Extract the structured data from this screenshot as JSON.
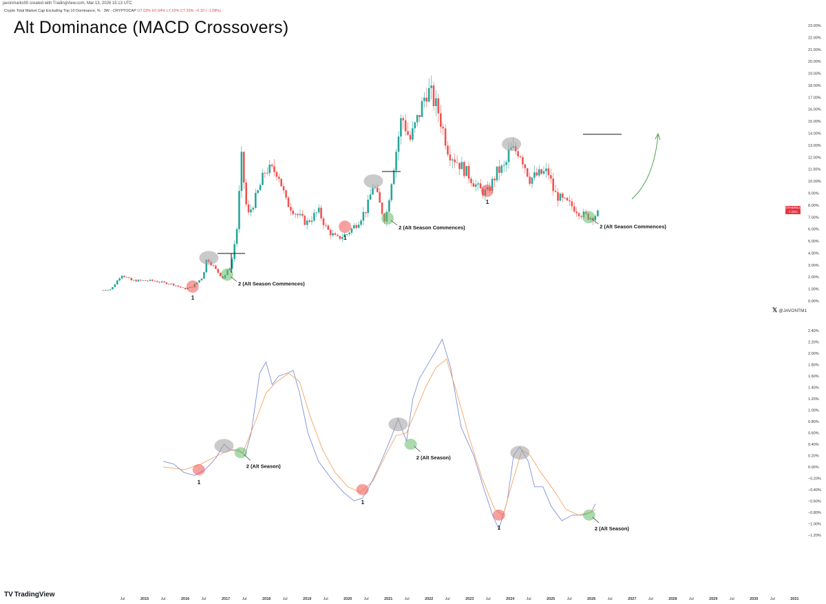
{
  "header": {
    "meta": "javonmarks00 created with TradingView.com, Mar 13, 2026 15:13 UTC",
    "symbol_prefix": "Crypto Total Market Cap Excluding Top 10 Dominance, % · 3W · CRYPTOCAP",
    "ohlc": "O7.63% H7.64% L7.22% C7.33% −0.10 (−1.08%)"
  },
  "title": "Alt Dominance (MACD Crossovers)",
  "price_tag": {
    "symbol": "OTHERS.D",
    "value": "7.33%",
    "sub": "8d 6h"
  },
  "x_handle": "@JAVONTM1",
  "footer": {
    "logo_text": "TradingView"
  },
  "colors": {
    "up": "#26a69a",
    "down": "#ef5350",
    "macd_line": "#7b8fd6",
    "signal_line": "#f4a261",
    "red_marker": "#ef5350",
    "green_marker": "#66bb6a",
    "gray_marker": "#9e9e9e",
    "arrow": "#43a047"
  },
  "chart_data": [
    {
      "type": "candlestick",
      "xlabel": "",
      "ylabel": "",
      "ylim": [
        0,
        23
      ],
      "y_ticks": [
        "0.00%",
        "1.00%",
        "2.00%",
        "3.00%",
        "4.00%",
        "5.00%",
        "6.00%",
        "7.00%",
        "8.00%",
        "9.00%",
        "10.00%",
        "11.00%",
        "12.00%",
        "13.00%",
        "14.00%",
        "15.00%",
        "16.00%",
        "17.00%",
        "18.00%",
        "19.00%",
        "20.00%",
        "21.00%",
        "22.00%",
        "23.00%"
      ],
      "x_ticks": [
        {
          "label": "Jul",
          "t": 2014.5
        },
        {
          "label": "2015",
          "t": 2015
        },
        {
          "label": "Jul",
          "t": 2015.5
        },
        {
          "label": "2016",
          "t": 2016
        },
        {
          "label": "Jul",
          "t": 2016.5
        },
        {
          "label": "2017",
          "t": 2017
        },
        {
          "label": "Jul",
          "t": 2017.5
        },
        {
          "label": "2018",
          "t": 2018
        },
        {
          "label": "Jul",
          "t": 2018.5
        },
        {
          "label": "2019",
          "t": 2019
        },
        {
          "label": "Jul",
          "t": 2019.5
        },
        {
          "label": "2020",
          "t": 2020
        },
        {
          "label": "Jul",
          "t": 2020.5
        },
        {
          "label": "2021",
          "t": 2021
        },
        {
          "label": "Jul",
          "t": 2021.5
        },
        {
          "label": "2022",
          "t": 2022
        },
        {
          "label": "Jul",
          "t": 2022.5
        },
        {
          "label": "2023",
          "t": 2023
        },
        {
          "label": "Jul",
          "t": 2023.5
        },
        {
          "label": "2024",
          "t": 2024
        },
        {
          "label": "Jul",
          "t": 2024.5
        },
        {
          "label": "2025",
          "t": 2025
        },
        {
          "label": "Jul",
          "t": 2025.5
        },
        {
          "label": "2026",
          "t": 2026
        },
        {
          "label": "Jul",
          "t": 2026.5
        },
        {
          "label": "2027",
          "t": 2027
        },
        {
          "label": "Jul",
          "t": 2027.5
        },
        {
          "label": "2028",
          "t": 2028
        },
        {
          "label": "Jul",
          "t": 2028.5
        },
        {
          "label": "2029",
          "t": 2029
        },
        {
          "label": "Jul",
          "t": 2029.5
        },
        {
          "label": "2030",
          "t": 2030
        },
        {
          "label": "Jul",
          "t": 2030.5
        },
        {
          "label": "2031",
          "t": 2031
        }
      ],
      "series_trend": [
        {
          "t": 2014.0,
          "v": 0.9
        },
        {
          "t": 2014.2,
          "v": 1.0
        },
        {
          "t": 2014.45,
          "v": 2.2
        },
        {
          "t": 2014.7,
          "v": 1.7
        },
        {
          "t": 2015.2,
          "v": 1.7
        },
        {
          "t": 2015.7,
          "v": 1.4
        },
        {
          "t": 2016.0,
          "v": 1.0
        },
        {
          "t": 2016.2,
          "v": 1.2
        },
        {
          "t": 2016.45,
          "v": 2.0
        },
        {
          "t": 2016.55,
          "v": 3.6
        },
        {
          "t": 2016.75,
          "v": 2.7
        },
        {
          "t": 2016.95,
          "v": 1.9
        },
        {
          "t": 2017.15,
          "v": 3.0
        },
        {
          "t": 2017.3,
          "v": 6.3
        },
        {
          "t": 2017.4,
          "v": 12.0
        },
        {
          "t": 2017.55,
          "v": 7.0
        },
        {
          "t": 2017.8,
          "v": 9.0
        },
        {
          "t": 2018.0,
          "v": 11.0
        },
        {
          "t": 2018.3,
          "v": 10.8
        },
        {
          "t": 2018.5,
          "v": 8.3
        },
        {
          "t": 2018.75,
          "v": 7.3
        },
        {
          "t": 2019.0,
          "v": 6.5
        },
        {
          "t": 2019.3,
          "v": 7.5
        },
        {
          "t": 2019.5,
          "v": 6.0
        },
        {
          "t": 2019.75,
          "v": 5.2
        },
        {
          "t": 2020.0,
          "v": 5.6
        },
        {
          "t": 2020.25,
          "v": 6.5
        },
        {
          "t": 2020.5,
          "v": 7.8
        },
        {
          "t": 2020.65,
          "v": 9.8
        },
        {
          "t": 2020.85,
          "v": 7.6
        },
        {
          "t": 2020.95,
          "v": 6.7
        },
        {
          "t": 2021.1,
          "v": 10.2
        },
        {
          "t": 2021.35,
          "v": 15.5
        },
        {
          "t": 2021.55,
          "v": 13.4
        },
        {
          "t": 2021.8,
          "v": 15.8
        },
        {
          "t": 2021.95,
          "v": 17.5
        },
        {
          "t": 2022.05,
          "v": 17.4
        },
        {
          "t": 2022.25,
          "v": 15.8
        },
        {
          "t": 2022.5,
          "v": 12.5
        },
        {
          "t": 2022.75,
          "v": 11.5
        },
        {
          "t": 2023.0,
          "v": 10.5
        },
        {
          "t": 2023.25,
          "v": 9.3
        },
        {
          "t": 2023.45,
          "v": 9.0
        },
        {
          "t": 2023.7,
          "v": 10.8
        },
        {
          "t": 2023.9,
          "v": 11.2
        },
        {
          "t": 2024.0,
          "v": 12.6
        },
        {
          "t": 2024.25,
          "v": 12.5
        },
        {
          "t": 2024.5,
          "v": 10.2
        },
        {
          "t": 2024.75,
          "v": 10.6
        },
        {
          "t": 2024.95,
          "v": 10.8
        },
        {
          "t": 2025.1,
          "v": 9.0
        },
        {
          "t": 2025.3,
          "v": 8.4
        },
        {
          "t": 2025.55,
          "v": 7.9
        },
        {
          "t": 2025.8,
          "v": 7.2
        },
        {
          "t": 2026.0,
          "v": 7.0
        },
        {
          "t": 2026.2,
          "v": 7.33
        }
      ],
      "annotations": [
        {
          "label": "1",
          "t": 2016.2,
          "v": 1.2,
          "kind": "red"
        },
        {
          "label": "",
          "t": 2016.6,
          "v": 3.6,
          "kind": "gray"
        },
        {
          "label": "2  (Alt Season Commences)",
          "t": 2017.05,
          "v": 2.2,
          "kind": "green"
        },
        {
          "label": "1",
          "t": 2019.95,
          "v": 6.2,
          "kind": "red"
        },
        {
          "label": "",
          "t": 2020.65,
          "v": 10.0,
          "kind": "gray"
        },
        {
          "label": "2  (Alt Season Commences)",
          "t": 2021.0,
          "v": 6.9,
          "kind": "green"
        },
        {
          "label": "1",
          "t": 2023.45,
          "v": 9.2,
          "kind": "red"
        },
        {
          "label": "",
          "t": 2024.05,
          "v": 13.1,
          "kind": "gray"
        },
        {
          "label": "2  (Alt Season Commences)",
          "t": 2025.95,
          "v": 7.0,
          "kind": "green"
        }
      ]
    },
    {
      "type": "line",
      "xlabel": "",
      "ylabel": "",
      "ylim": [
        -1.3,
        2.5
      ],
      "y_ticks": [
        "2.40%",
        "2.20%",
        "2.00%",
        "1.80%",
        "1.60%",
        "1.40%",
        "1.20%",
        "1.00%",
        "0.80%",
        "0.60%",
        "0.40%",
        "0.20%",
        "0.00%",
        "−0.20%",
        "−0.40%",
        "−0.60%",
        "−0.80%",
        "−1.00%",
        "−1.20%"
      ],
      "series": [
        {
          "values": [
            {
              "t": 2014.0,
              "v": 0.1
            },
            {
              "t": 2014.25,
              "v": 0.05
            },
            {
              "t": 2014.5,
              "v": -0.1
            },
            {
              "t": 2014.75,
              "v": -0.15
            },
            {
              "t": 2015.0,
              "v": -0.05
            },
            {
              "t": 2015.25,
              "v": 0.15
            },
            {
              "t": 2015.45,
              "v": 0.4
            },
            {
              "t": 2015.6,
              "v": 0.3
            },
            {
              "t": 2015.8,
              "v": 0.3
            },
            {
              "t": 2015.95,
              "v": 0.2
            },
            {
              "t": 2016.1,
              "v": 0.6
            },
            {
              "t": 2016.3,
              "v": 1.65
            },
            {
              "t": 2016.45,
              "v": 1.85
            },
            {
              "t": 2016.6,
              "v": 1.45
            },
            {
              "t": 2016.75,
              "v": 1.6
            },
            {
              "t": 2016.95,
              "v": 1.65
            },
            {
              "t": 2017.1,
              "v": 1.7
            },
            {
              "t": 2017.25,
              "v": 1.3
            },
            {
              "t": 2017.45,
              "v": 0.6
            },
            {
              "t": 2017.7,
              "v": 0.1
            },
            {
              "t": 2018.0,
              "v": -0.2
            },
            {
              "t": 2018.3,
              "v": -0.45
            },
            {
              "t": 2018.55,
              "v": -0.6
            },
            {
              "t": 2018.75,
              "v": -0.55
            },
            {
              "t": 2018.95,
              "v": -0.3
            },
            {
              "t": 2019.2,
              "v": 0.1
            },
            {
              "t": 2019.45,
              "v": 0.55
            },
            {
              "t": 2019.6,
              "v": 0.85
            },
            {
              "t": 2019.8,
              "v": 0.45
            },
            {
              "t": 2019.95,
              "v": 1.2
            },
            {
              "t": 2020.1,
              "v": 1.55
            },
            {
              "t": 2020.3,
              "v": 1.8
            },
            {
              "t": 2020.5,
              "v": 2.05
            },
            {
              "t": 2020.65,
              "v": 2.25
            },
            {
              "t": 2020.85,
              "v": 1.75
            },
            {
              "t": 2021.1,
              "v": 0.7
            },
            {
              "t": 2021.4,
              "v": 0.2
            },
            {
              "t": 2021.65,
              "v": -0.4
            },
            {
              "t": 2021.85,
              "v": -0.85
            },
            {
              "t": 2022.0,
              "v": -1.1
            },
            {
              "t": 2022.2,
              "v": -0.6
            },
            {
              "t": 2022.35,
              "v": 0.2
            },
            {
              "t": 2022.5,
              "v": 0.35
            },
            {
              "t": 2022.7,
              "v": 0.1
            },
            {
              "t": 2022.85,
              "v": -0.35
            },
            {
              "t": 2023.05,
              "v": -0.35
            },
            {
              "t": 2023.25,
              "v": -0.7
            },
            {
              "t": 2023.5,
              "v": -0.95
            },
            {
              "t": 2023.75,
              "v": -0.85
            },
            {
              "t": 2024.0,
              "v": -0.85
            },
            {
              "t": 2024.2,
              "v": -0.8
            },
            {
              "t": 2024.3,
              "v": -0.65
            }
          ]
        },
        {
          "values": [
            {
              "t": 2014.0,
              "v": 0.0
            },
            {
              "t": 2014.5,
              "v": -0.05
            },
            {
              "t": 2014.9,
              "v": 0.05
            },
            {
              "t": 2015.3,
              "v": 0.2
            },
            {
              "t": 2015.6,
              "v": 0.3
            },
            {
              "t": 2015.9,
              "v": 0.25
            },
            {
              "t": 2016.2,
              "v": 0.8
            },
            {
              "t": 2016.45,
              "v": 1.3
            },
            {
              "t": 2016.7,
              "v": 1.5
            },
            {
              "t": 2017.0,
              "v": 1.65
            },
            {
              "t": 2017.25,
              "v": 1.5
            },
            {
              "t": 2017.5,
              "v": 0.9
            },
            {
              "t": 2017.8,
              "v": 0.3
            },
            {
              "t": 2018.1,
              "v": -0.1
            },
            {
              "t": 2018.4,
              "v": -0.35
            },
            {
              "t": 2018.7,
              "v": -0.45
            },
            {
              "t": 2019.0,
              "v": -0.25
            },
            {
              "t": 2019.3,
              "v": 0.2
            },
            {
              "t": 2019.55,
              "v": 0.55
            },
            {
              "t": 2019.8,
              "v": 0.6
            },
            {
              "t": 2020.0,
              "v": 0.95
            },
            {
              "t": 2020.25,
              "v": 1.4
            },
            {
              "t": 2020.5,
              "v": 1.75
            },
            {
              "t": 2020.75,
              "v": 1.9
            },
            {
              "t": 2021.0,
              "v": 1.3
            },
            {
              "t": 2021.3,
              "v": 0.5
            },
            {
              "t": 2021.6,
              "v": -0.2
            },
            {
              "t": 2021.9,
              "v": -0.75
            },
            {
              "t": 2022.1,
              "v": -0.85
            },
            {
              "t": 2022.35,
              "v": -0.2
            },
            {
              "t": 2022.55,
              "v": 0.3
            },
            {
              "t": 2022.75,
              "v": 0.2
            },
            {
              "t": 2023.0,
              "v": -0.1
            },
            {
              "t": 2023.3,
              "v": -0.4
            },
            {
              "t": 2023.6,
              "v": -0.75
            },
            {
              "t": 2023.9,
              "v": -0.85
            },
            {
              "t": 2024.2,
              "v": -0.8
            },
            {
              "t": 2024.3,
              "v": -0.75
            }
          ]
        }
      ],
      "annotations": [
        {
          "label": "1",
          "t": 2014.85,
          "v": -0.05,
          "kind": "red"
        },
        {
          "label": "",
          "t": 2015.45,
          "v": 0.37,
          "kind": "gray"
        },
        {
          "label": "2 (Alt Season)",
          "t": 2015.85,
          "v": 0.25,
          "kind": "green"
        },
        {
          "label": "1",
          "t": 2018.75,
          "v": -0.4,
          "kind": "red"
        },
        {
          "label": "",
          "t": 2019.6,
          "v": 0.75,
          "kind": "gray"
        },
        {
          "label": "2 (Alt Season)",
          "t": 2019.9,
          "v": 0.4,
          "kind": "green"
        },
        {
          "label": "1",
          "t": 2022.0,
          "v": -0.85,
          "kind": "red"
        },
        {
          "label": "",
          "t": 2022.5,
          "v": 0.25,
          "kind": "gray"
        },
        {
          "label": "2 (Alt Season)",
          "t": 2024.15,
          "v": -0.85,
          "kind": "green"
        }
      ]
    }
  ]
}
